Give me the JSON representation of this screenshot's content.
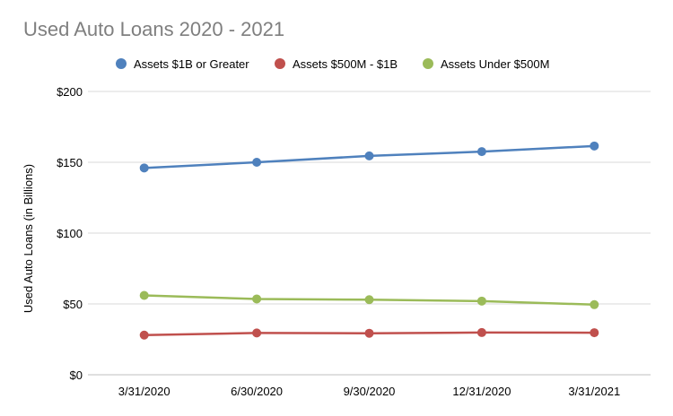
{
  "chart_data": {
    "type": "line",
    "title": "Used Auto Loans 2020 - 2021",
    "xlabel": "",
    "ylabel": "Used Auto Loans (in Billions)",
    "categories": [
      "3/31/2020",
      "6/30/2020",
      "9/30/2020",
      "12/31/2020",
      "3/31/2021"
    ],
    "ylim": [
      0,
      200
    ],
    "yticks": [
      0,
      50,
      100,
      150,
      200
    ],
    "ytick_labels": [
      "$0",
      "$50",
      "$100",
      "$150",
      "$200"
    ],
    "grid": true,
    "legend_position": "top",
    "series": [
      {
        "name": "Assets $1B or Greater",
        "color": "#4f81bd",
        "values": [
          146,
          150,
          154.5,
          157.5,
          161.5
        ]
      },
      {
        "name": "Assets $500M - $1B",
        "color": "#c0504d",
        "values": [
          28,
          29.5,
          29.3,
          29.8,
          29.7
        ]
      },
      {
        "name": "Assets Under $500M",
        "color": "#9bbb59",
        "values": [
          56,
          53.5,
          53,
          52,
          49.5
        ]
      }
    ]
  }
}
